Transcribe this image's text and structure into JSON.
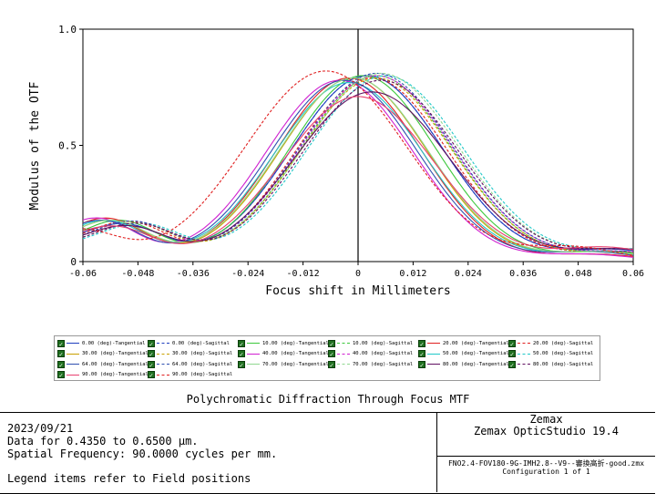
{
  "chart_data": {
    "type": "line",
    "title": "Polychromatic Diffraction Through Focus MTF",
    "xlabel": "Focus shift in Millimeters",
    "ylabel": "Modulus of the OTF",
    "xlim": [
      -0.06,
      0.06
    ],
    "ylim": [
      0,
      1.0
    ],
    "x_ticks": [
      "-0.06",
      "-0.048",
      "-0.036",
      "-0.024",
      "-0.012",
      "0",
      "0.012",
      "0.024",
      "0.036",
      "0.048",
      "0.06"
    ],
    "y_ticks": [
      "0",
      "0.5",
      "1.0"
    ],
    "grid": false,
    "legend_placement": "below",
    "series": [
      {
        "name": "0.00 (deg)-Tangential",
        "color": "#1f3fbf",
        "dash": false,
        "center": 0.002,
        "peak": 0.8,
        "width": 0.0165,
        "lobe": [
          0.13,
          0.07,
          0.05
        ]
      },
      {
        "name": "0.00 (deg)-Sagittal",
        "color": "#1f3fbf",
        "dash": true,
        "center": 0.002,
        "peak": 0.8,
        "width": 0.0165,
        "lobe": [
          0.13,
          0.07,
          0.05
        ]
      },
      {
        "name": "10.00 (deg)-Tangential",
        "color": "#3cc83c",
        "dash": false,
        "center": 0.001,
        "peak": 0.8,
        "width": 0.016,
        "lobe": [
          0.15,
          0.06,
          0.04
        ]
      },
      {
        "name": "10.00 (deg)-Sagittal",
        "color": "#3cc83c",
        "dash": true,
        "center": 0.004,
        "peak": 0.8,
        "width": 0.0165,
        "lobe": [
          0.14,
          0.07,
          0.04
        ]
      },
      {
        "name": "20.00 (deg)-Tangential",
        "color": "#e02020",
        "dash": false,
        "center": -0.002,
        "peak": 0.79,
        "width": 0.0158,
        "lobe": [
          0.16,
          0.06,
          0.03
        ]
      },
      {
        "name": "20.00 (deg)-Sagittal",
        "color": "#e02020",
        "dash": true,
        "center": 0.003,
        "peak": 0.79,
        "width": 0.0165,
        "lobe": [
          0.14,
          0.07,
          0.04
        ]
      },
      {
        "name": "30.00 (deg)-Tangential",
        "color": "#c8a000",
        "dash": false,
        "center": -0.001,
        "peak": 0.79,
        "width": 0.016,
        "lobe": [
          0.15,
          0.06,
          0.04
        ]
      },
      {
        "name": "30.00 (deg)-Sagittal",
        "color": "#c8a000",
        "dash": true,
        "center": 0.004,
        "peak": 0.79,
        "width": 0.0165,
        "lobe": [
          0.14,
          0.07,
          0.04
        ]
      },
      {
        "name": "40.00 (deg)-Tangential",
        "color": "#d020d0",
        "dash": false,
        "center": -0.004,
        "peak": 0.78,
        "width": 0.016,
        "lobe": [
          0.16,
          0.06,
          0.03
        ]
      },
      {
        "name": "40.00 (deg)-Sagittal",
        "color": "#d020d0",
        "dash": true,
        "center": 0.004,
        "peak": 0.8,
        "width": 0.0168,
        "lobe": [
          0.14,
          0.07,
          0.04
        ]
      },
      {
        "name": "50.00 (deg)-Tangential",
        "color": "#20c8c8",
        "dash": false,
        "center": -0.002,
        "peak": 0.77,
        "width": 0.0162,
        "lobe": [
          0.15,
          0.06,
          0.04
        ]
      },
      {
        "name": "50.00 (deg)-Sagittal",
        "color": "#20c8c8",
        "dash": true,
        "center": 0.006,
        "peak": 0.8,
        "width": 0.017,
        "lobe": [
          0.13,
          0.07,
          0.05
        ]
      },
      {
        "name": "64.00 (deg)-Tangential",
        "color": "#3050b0",
        "dash": false,
        "center": -0.003,
        "peak": 0.78,
        "width": 0.016,
        "lobe": [
          0.15,
          0.06,
          0.04
        ]
      },
      {
        "name": "64.00 (deg)-Sagittal",
        "color": "#3050b0",
        "dash": true,
        "center": 0.004,
        "peak": 0.81,
        "width": 0.0168,
        "lobe": [
          0.14,
          0.07,
          0.04
        ]
      },
      {
        "name": "70.00 (deg)-Tangential",
        "color": "#90d890",
        "dash": false,
        "center": -0.001,
        "peak": 0.79,
        "width": 0.0162,
        "lobe": [
          0.15,
          0.06,
          0.04
        ]
      },
      {
        "name": "70.00 (deg)-Sagittal",
        "color": "#90d890",
        "dash": true,
        "center": 0.005,
        "peak": 0.81,
        "width": 0.017,
        "lobe": [
          0.13,
          0.07,
          0.05
        ]
      },
      {
        "name": "80.00 (deg)-Tangential",
        "color": "#601060",
        "dash": false,
        "center": 0.003,
        "peak": 0.73,
        "width": 0.017,
        "lobe": [
          0.12,
          0.07,
          0.05
        ]
      },
      {
        "name": "80.00 (deg)-Sagittal",
        "color": "#601060",
        "dash": true,
        "center": 0.005,
        "peak": 0.78,
        "width": 0.017,
        "lobe": [
          0.13,
          0.07,
          0.05
        ]
      },
      {
        "name": "90.00 (deg)-Tangential",
        "color": "#e84070",
        "dash": false,
        "center": 0.0,
        "peak": 0.71,
        "width": 0.0165,
        "lobe": [
          0.12,
          0.07,
          0.06
        ]
      },
      {
        "name": "90.00 (deg)-Sagittal",
        "color": "#e02020",
        "dash": true,
        "center": -0.007,
        "peak": 0.82,
        "width": 0.0175,
        "lobe": [
          0.1,
          0.08,
          0.06
        ]
      }
    ]
  },
  "info": {
    "date": "2023/09/21",
    "data_range": "Data for 0.4350 to 0.6500 µm.",
    "spatial_freq": "Spatial Frequency: 90.0000 cycles per mm.",
    "legend_note": "Legend items refer to Field positions",
    "company": "Zemax",
    "product": "Zemax OpticStudio 19.4",
    "filename": "FNO2.4-FOV180-9G-IMH2.8--V9--審換高折-good.zmx",
    "configuration": "Configuration 1 of 1"
  }
}
